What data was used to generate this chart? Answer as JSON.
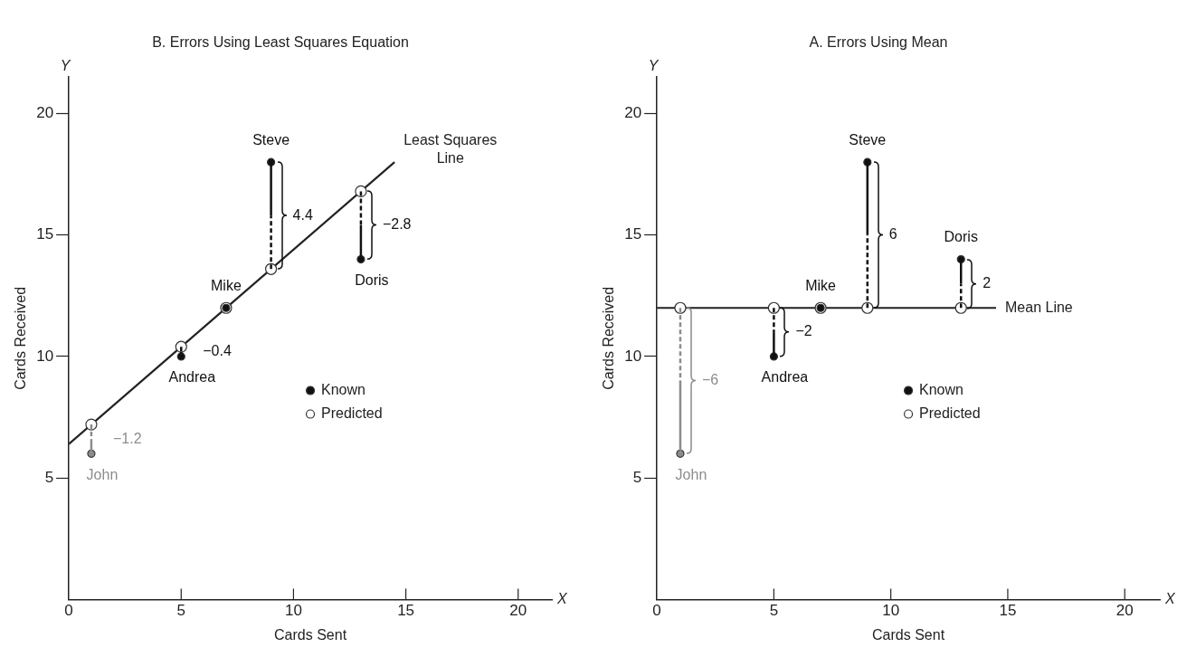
{
  "chart_data": [
    {
      "type": "scatter",
      "title": "B. Errors Using Least Squares Equation",
      "xlabel": "Cards Sent",
      "ylabel": "Cards Received",
      "xlim": [
        0,
        21.5
      ],
      "xticks": [
        0,
        5,
        10,
        15,
        20
      ],
      "ylim": [
        0,
        21.5
      ],
      "yticks": [
        5,
        10,
        15,
        20
      ],
      "grid": false,
      "legend": "right",
      "annotations": [
        "Y",
        "X",
        "−1.2",
        "−0.4",
        "4.4",
        "−2.8",
        {
          "text": "John",
          "x": 1,
          "y": 6
        },
        {
          "text": "Andrea",
          "x": 5,
          "y": 10
        },
        {
          "text": "Mike",
          "x": 7,
          "y": 12
        },
        {
          "text": "Steve",
          "x": 9,
          "y": 18
        },
        {
          "text": "Doris",
          "x": 13,
          "y": 14
        }
      ],
      "series": [
        {
          "name": "Known",
          "marker": "circle",
          "color": "#111111",
          "colors": [
            "#8c8c8c",
            "#111111",
            "#111111",
            "#111111",
            "#111111"
          ],
          "x": [
            1,
            5,
            7,
            9,
            13
          ],
          "values": [
            6,
            10,
            12,
            18,
            14
          ],
          "errors": [
            [
              6,
              7.2
            ],
            [
              10,
              10.4
            ],
            null,
            [
              13.6,
              18
            ],
            [
              14,
              16.8
            ]
          ]
        },
        {
          "name": "Predicted",
          "marker": "circle",
          "color": "#ffffff",
          "x": [
            1,
            5,
            7,
            9,
            13
          ],
          "values": [
            7.2,
            10.4,
            12,
            13.6,
            16.8
          ]
        },
        {
          "name": "Least Squares Line",
          "type": "line",
          "color": "#222222",
          "x": [
            0,
            14.5
          ],
          "values": [
            6.4,
            18
          ]
        }
      ]
    },
    {
      "type": "scatter",
      "title": "A. Errors Using Mean",
      "xlabel": "Cards Sent",
      "ylabel": "Cards Received",
      "xlim": [
        0,
        21.5
      ],
      "xticks": [
        0,
        5,
        10,
        15,
        20
      ],
      "ylim": [
        0,
        21.5
      ],
      "yticks": [
        5,
        10,
        15,
        20
      ],
      "grid": false,
      "legend": "right",
      "annotations": [
        "Y",
        "X",
        "−6",
        "−2",
        "6",
        "2",
        {
          "text": "John",
          "x": 1,
          "y": 6
        },
        {
          "text": "Andrea",
          "x": 5,
          "y": 10
        },
        {
          "text": "Mike",
          "x": 7,
          "y": 12
        },
        {
          "text": "Steve",
          "x": 9,
          "y": 18
        },
        {
          "text": "Doris",
          "x": 13,
          "y": 14
        }
      ],
      "series": [
        {
          "name": "Known",
          "marker": "circle",
          "color": "#111111",
          "colors": [
            "#8c8c8c",
            "#111111",
            "#111111",
            "#111111",
            "#111111"
          ],
          "x": [
            1,
            5,
            7,
            9,
            13
          ],
          "values": [
            6,
            10,
            12,
            18,
            14
          ],
          "errors": [
            [
              6,
              12
            ],
            [
              10,
              12
            ],
            null,
            [
              12,
              18
            ],
            [
              12,
              14
            ]
          ]
        },
        {
          "name": "Predicted",
          "marker": "circle",
          "color": "#ffffff",
          "x": [
            1,
            5,
            7,
            9,
            13
          ],
          "values": [
            12,
            12,
            12,
            12,
            12
          ]
        },
        {
          "name": "Mean Line",
          "type": "line",
          "color": "#222222",
          "x": [
            0,
            14.5
          ],
          "values": [
            12,
            12
          ]
        }
      ]
    }
  ]
}
